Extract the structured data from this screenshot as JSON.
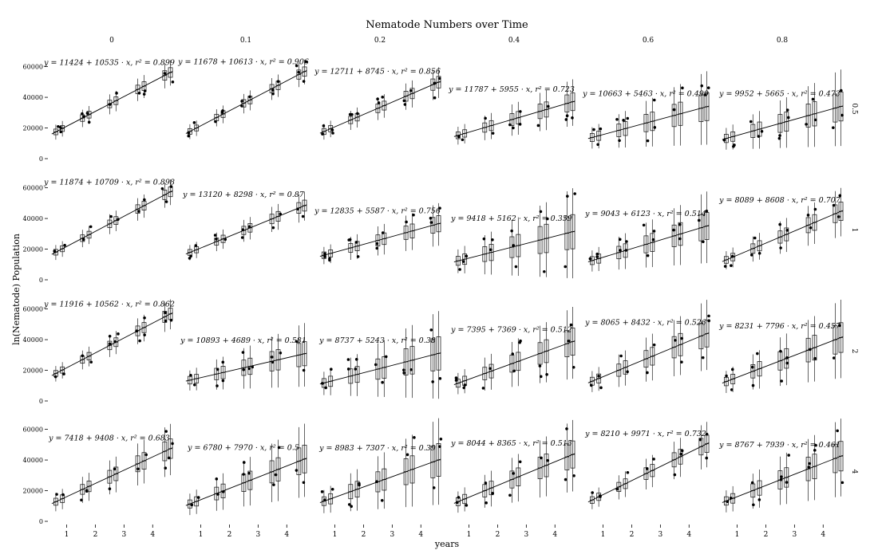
{
  "chart_data": {
    "type": "scatter",
    "title": "Nematode Numbers over Time",
    "xlabel": "years",
    "ylabel": "ln(Nematode) Population",
    "column_labels": [
      "0",
      "0.1",
      "0.2",
      "0.4",
      "0.6",
      "0.8"
    ],
    "row_labels": [
      "0.5",
      "1",
      "2",
      "4"
    ],
    "x_ticks": [
      1,
      2,
      3,
      4
    ],
    "y_ticks": [
      0,
      20000,
      40000,
      60000
    ],
    "y_tick_labels": [
      "0",
      "20000",
      "40000",
      "60000"
    ],
    "xlim": [
      0.4,
      4.8
    ],
    "ylim": [
      0,
      65000
    ],
    "grid": false,
    "fits": [
      [
        {
          "intercept": 11424,
          "slope": 10535,
          "r2": "0.899"
        },
        {
          "intercept": 11678,
          "slope": 10613,
          "r2": "0.906"
        },
        {
          "intercept": 12711,
          "slope": 8745,
          "r2": "0.856"
        },
        {
          "intercept": 11787,
          "slope": 5955,
          "r2": "0.723"
        },
        {
          "intercept": 10663,
          "slope": 5463,
          "r2": "0.499"
        },
        {
          "intercept": 9952,
          "slope": 5665,
          "r2": "0.473"
        }
      ],
      [
        {
          "intercept": 11874,
          "slope": 10709,
          "r2": "0.898"
        },
        {
          "intercept": 13120,
          "slope": 8298,
          "r2": "0.87"
        },
        {
          "intercept": 12835,
          "slope": 5587,
          "r2": "0.756"
        },
        {
          "intercept": 9418,
          "slope": 5162,
          "r2": "0.359"
        },
        {
          "intercept": 9043,
          "slope": 6123,
          "r2": "0.514"
        },
        {
          "intercept": 8089,
          "slope": 8608,
          "r2": "0.707"
        }
      ],
      [
        {
          "intercept": 11916,
          "slope": 10562,
          "r2": "0.862"
        },
        {
          "intercept": 10893,
          "slope": 4689,
          "r2": "0.581"
        },
        {
          "intercept": 8737,
          "slope": 5243,
          "r2": "0.38"
        },
        {
          "intercept": 7395,
          "slope": 7369,
          "r2": "0.512"
        },
        {
          "intercept": 8065,
          "slope": 8432,
          "r2": "0.526"
        },
        {
          "intercept": 8231,
          "slope": 7796,
          "r2": "0.457"
        }
      ],
      [
        {
          "intercept": 7418,
          "slope": 9408,
          "r2": "0.683"
        },
        {
          "intercept": 6780,
          "slope": 7970,
          "r2": "0.5"
        },
        {
          "intercept": 8983,
          "slope": 7307,
          "r2": "0.39"
        },
        {
          "intercept": 8044,
          "slope": 8365,
          "r2": "0.515"
        },
        {
          "intercept": 8210,
          "slope": 9971,
          "r2": "0.732"
        },
        {
          "intercept": 8767,
          "slope": 7939,
          "r2": "0.461"
        }
      ]
    ]
  }
}
